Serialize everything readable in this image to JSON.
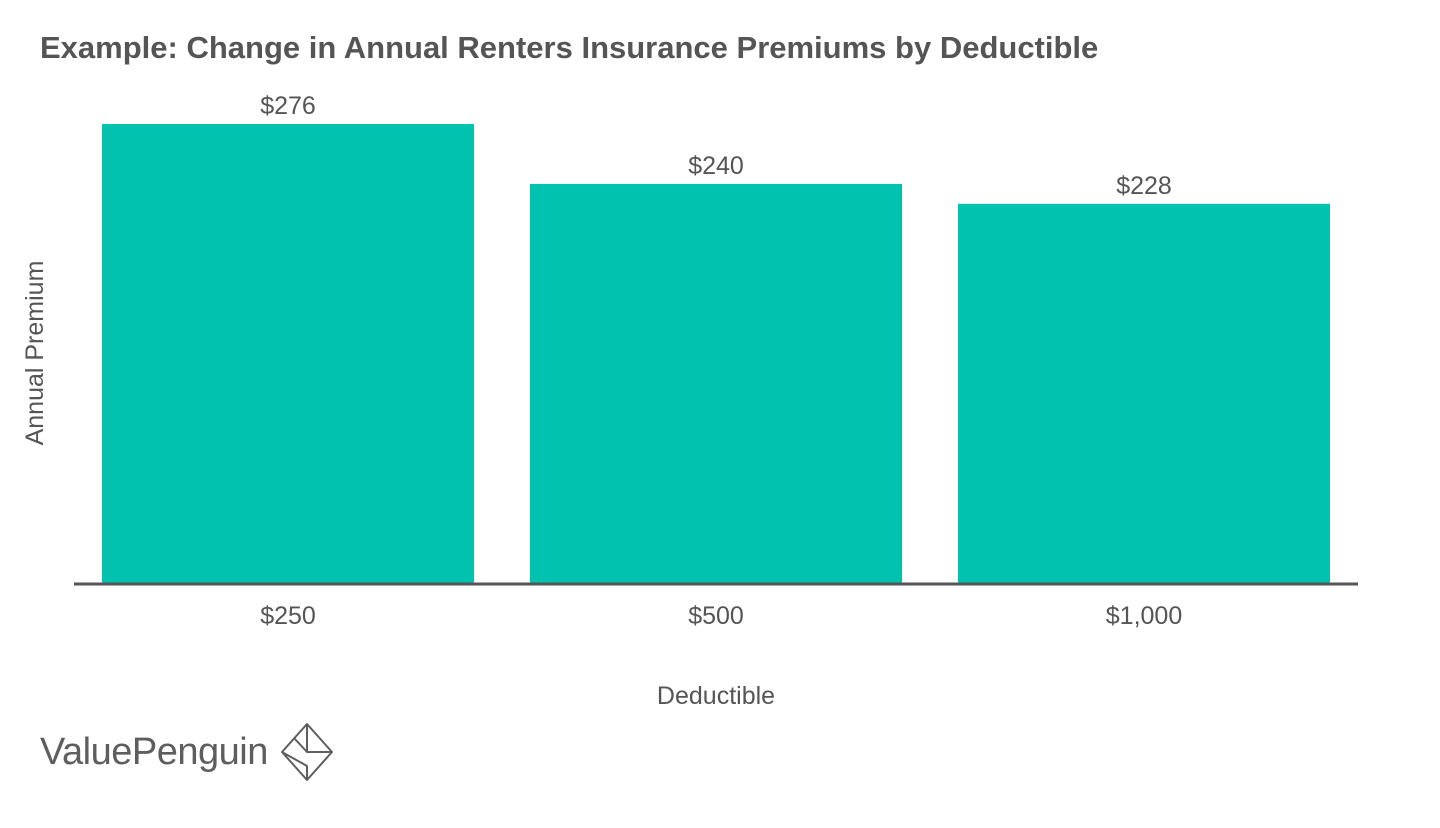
{
  "chart_data": {
    "type": "bar",
    "title": "Example: Change in Annual Renters Insurance Premiums by Deductible",
    "xlabel": "Deductible",
    "ylabel": "Annual Premium",
    "categories": [
      "$250",
      "$500",
      "$1,000"
    ],
    "values": [
      276,
      240,
      228
    ],
    "value_labels": [
      "$276",
      "$240",
      "$228"
    ],
    "ylim": [
      0,
      300
    ],
    "grid": false,
    "legend": "none",
    "colors": {
      "bar": "#00c2ae",
      "axis": "#555555",
      "text": "#555555"
    }
  },
  "brand": {
    "logo_text": "ValuePenguin",
    "logo_icon": "penguin-diamond-icon"
  }
}
